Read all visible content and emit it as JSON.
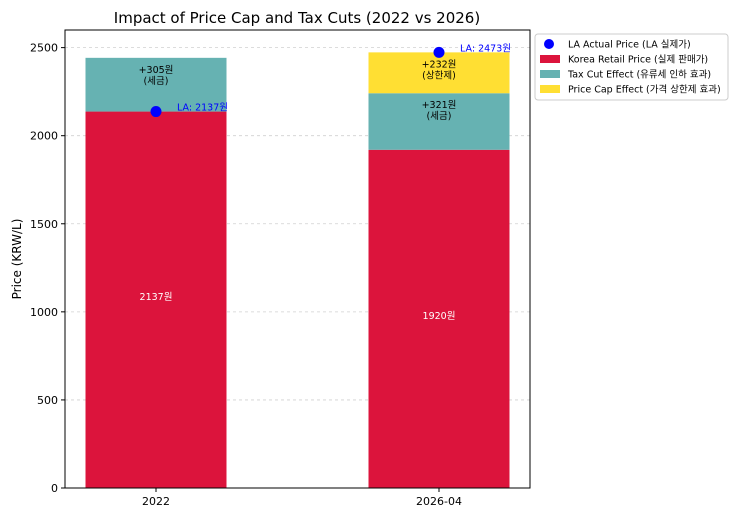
{
  "chart_data": {
    "type": "bar",
    "stacked": true,
    "title": "Impact of Price Cap and Tax Cuts (2022 vs 2026)",
    "xlabel": "",
    "ylabel": "Price (KRW/L)",
    "categories": [
      "2022",
      "2026-04"
    ],
    "ylim": [
      0,
      2600
    ],
    "yticks": [
      0,
      500,
      1000,
      1500,
      2000,
      2500
    ],
    "grid": "y-dashed",
    "legend_position": "outside-top-right",
    "series": [
      {
        "name": "Korea Retail Price (실제 판매가)",
        "color": "#dc143c",
        "values": [
          2137,
          1920
        ],
        "labels": [
          "2137원",
          "1920원"
        ]
      },
      {
        "name": "Tax Cut Effect (유류세 인하 효과)",
        "color": "#66b2b2",
        "values": [
          305,
          321
        ],
        "labels": [
          "+305원\n(세금)",
          "+321원\n(세금)"
        ]
      },
      {
        "name": "Price Cap Effect (가격 상한제 효과)",
        "color": "#ffdf33",
        "values": [
          0,
          232
        ],
        "labels": [
          "",
          "+232원\n(상한제)"
        ]
      }
    ],
    "points": {
      "name": "LA Actual Price (LA 실제가)",
      "color": "#0000ff",
      "values": [
        2137,
        2473
      ],
      "labels": [
        "LA: 2137원",
        "LA: 2473원"
      ]
    }
  }
}
